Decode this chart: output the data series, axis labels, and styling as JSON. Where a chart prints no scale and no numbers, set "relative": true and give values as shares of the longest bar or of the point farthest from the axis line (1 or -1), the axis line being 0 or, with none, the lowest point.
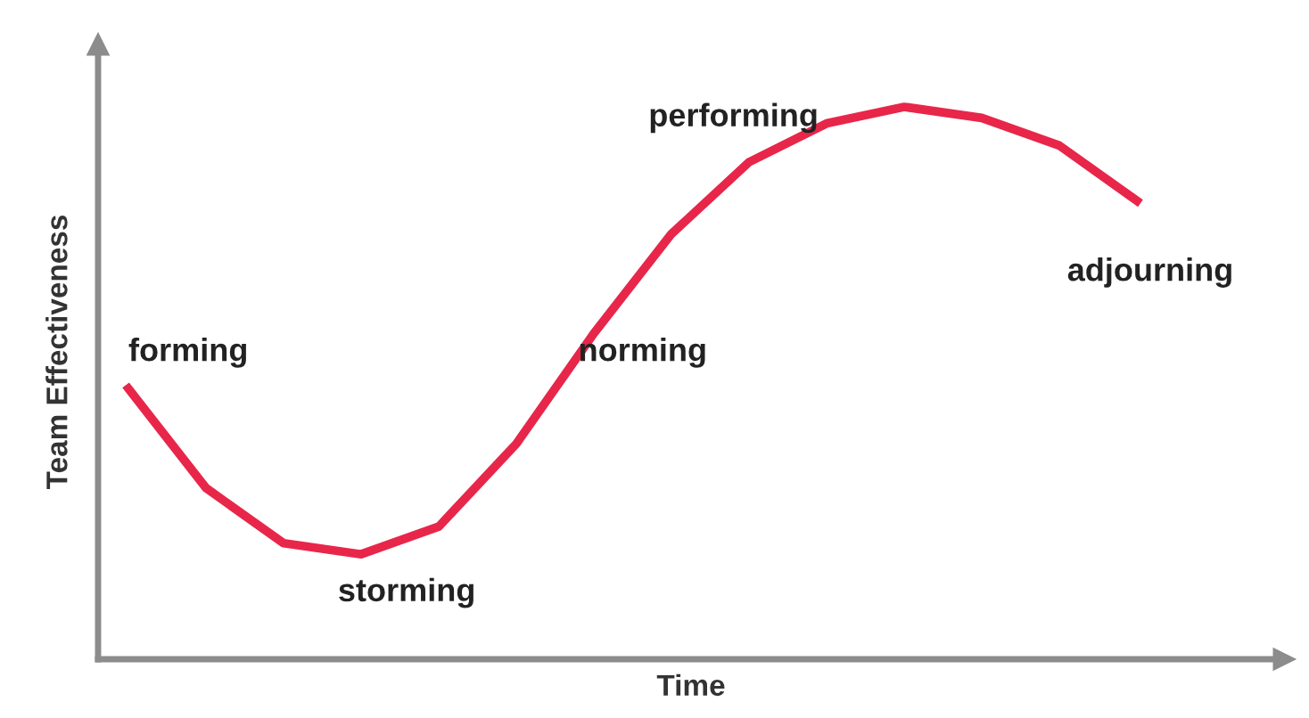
{
  "chart_data": {
    "type": "line",
    "relative": true,
    "xlabel": "Time",
    "ylabel": "Team Effectiveness",
    "categories": [
      null,
      null,
      null,
      null,
      null,
      null,
      null,
      null,
      null,
      null,
      null,
      null,
      null,
      null
    ],
    "series": [
      {
        "color": "#e8264a",
        "values": [
          0.49,
          0.31,
          0.21,
          0.19,
          0.24,
          0.39,
          0.59,
          0.77,
          0.9,
          0.97,
          1,
          0.98,
          0.93,
          0.83
        ]
      }
    ],
    "annotations": [
      "forming",
      "storming",
      "norming",
      "performing",
      "adjourning"
    ],
    "marker": "none",
    "grid": false,
    "legend": false,
    "tick_labels": false
  }
}
